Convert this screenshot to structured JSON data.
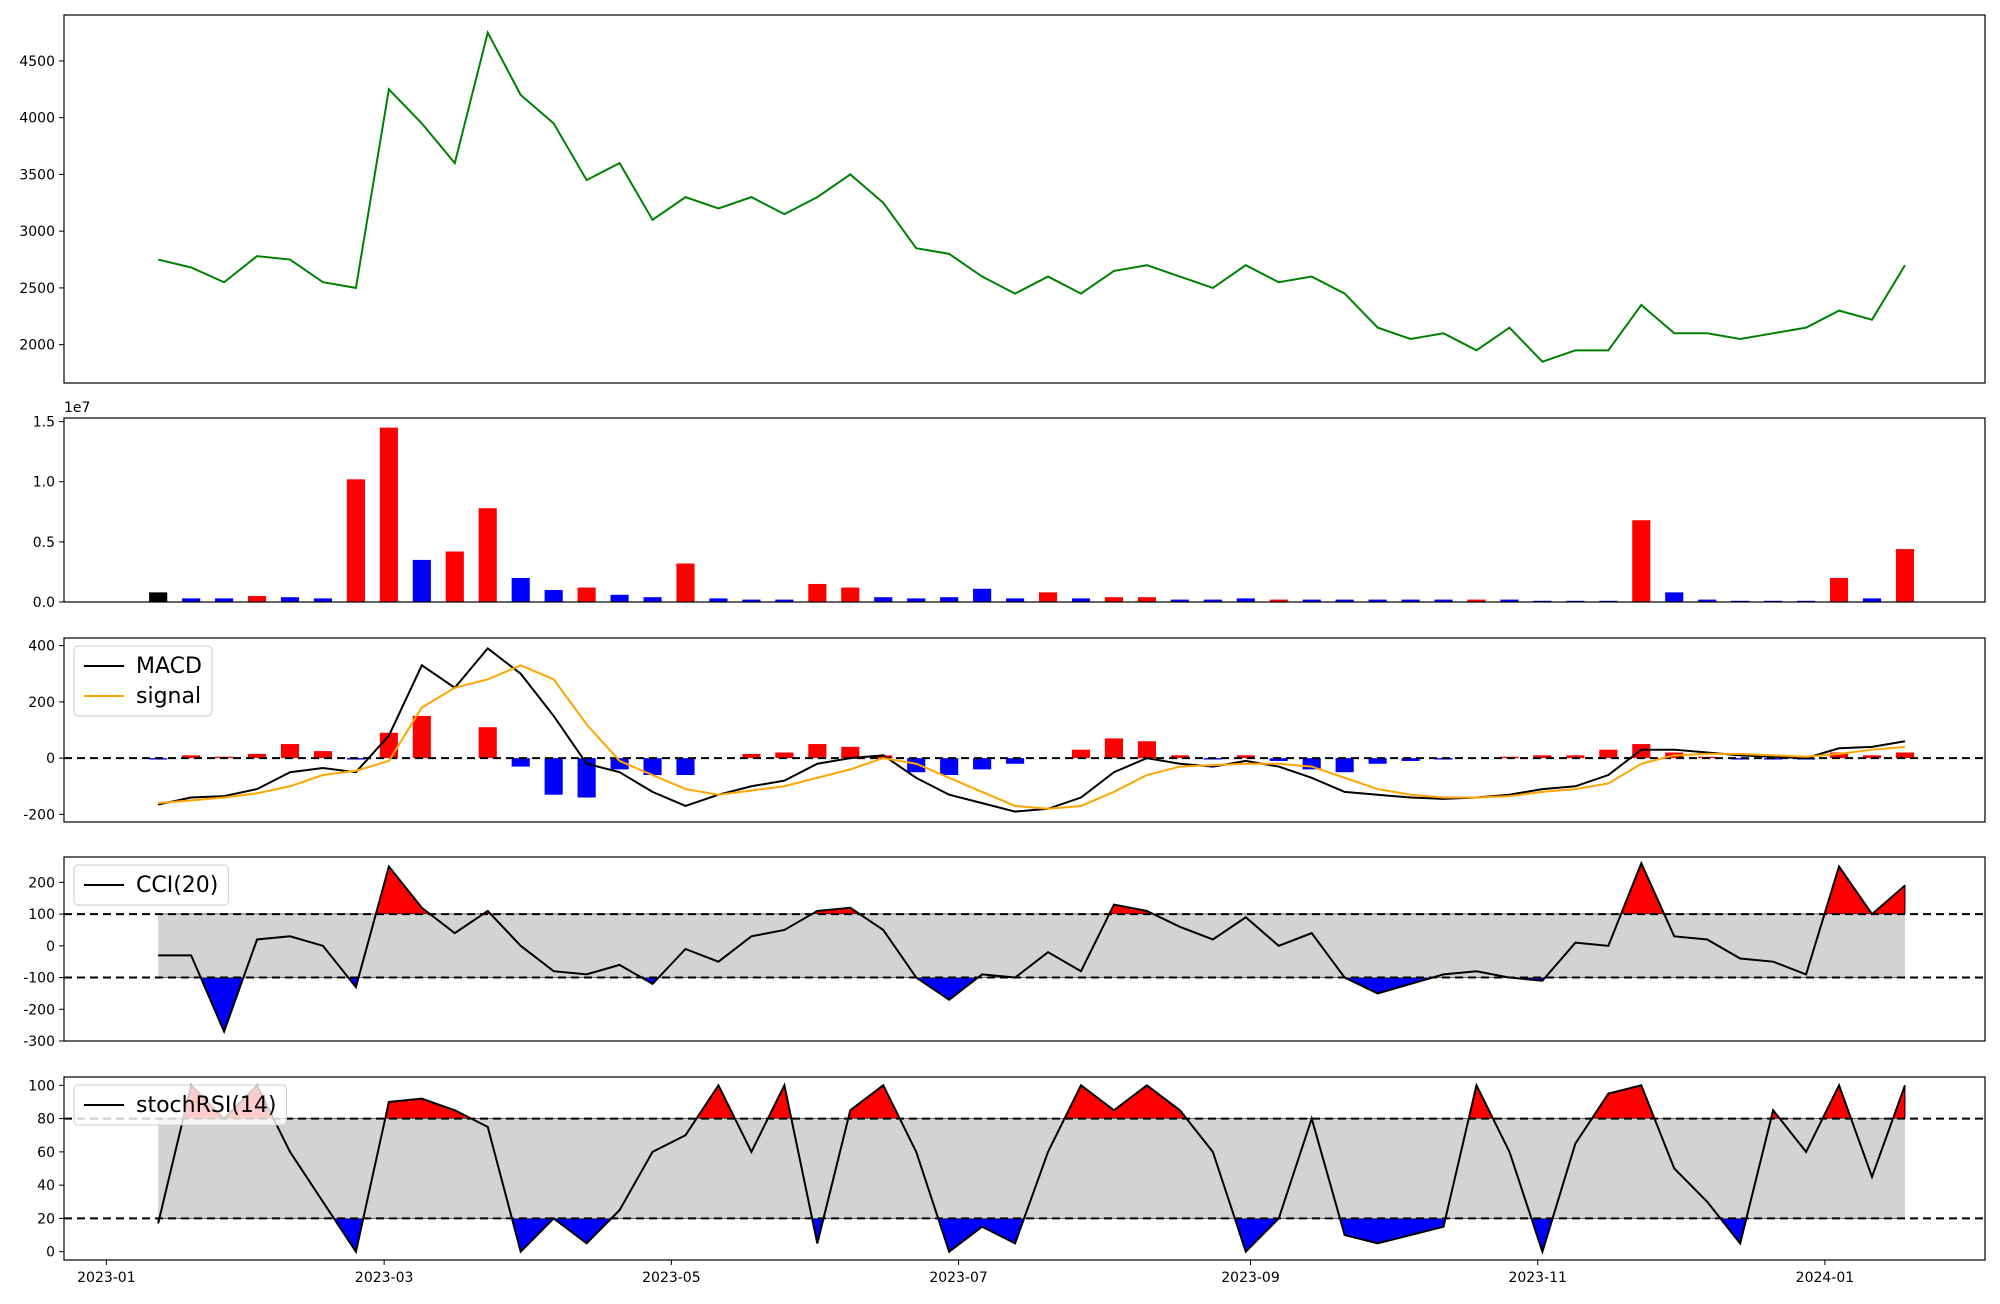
{
  "chart_data": [
    {
      "type": "line",
      "xlim": [
        "2022-12-23",
        "2024-02-04"
      ],
      "ylim": [
        1662,
        4905
      ],
      "yticks": [
        2000,
        2500,
        3000,
        3500,
        4000,
        4500
      ],
      "x": [
        "2023-01-12",
        "2023-01-19",
        "2023-01-26",
        "2023-02-02",
        "2023-02-09",
        "2023-02-16",
        "2023-02-23",
        "2023-03-02",
        "2023-03-09",
        "2023-03-16",
        "2023-03-23",
        "2023-03-30",
        "2023-04-06",
        "2023-04-13",
        "2023-04-20",
        "2023-04-27",
        "2023-05-04",
        "2023-05-11",
        "2023-05-18",
        "2023-05-25",
        "2023-06-01",
        "2023-06-08",
        "2023-06-15",
        "2023-06-22",
        "2023-06-29",
        "2023-07-06",
        "2023-07-13",
        "2023-07-20",
        "2023-07-27",
        "2023-08-03",
        "2023-08-10",
        "2023-08-17",
        "2023-08-24",
        "2023-08-31",
        "2023-09-07",
        "2023-09-14",
        "2023-09-21",
        "2023-09-28",
        "2023-10-05",
        "2023-10-12",
        "2023-10-19",
        "2023-10-26",
        "2023-11-02",
        "2023-11-09",
        "2023-11-16",
        "2023-11-23",
        "2023-11-30",
        "2023-12-07",
        "2023-12-14",
        "2023-12-21",
        "2023-12-28",
        "2024-01-04",
        "2024-01-11",
        "2024-01-18"
      ],
      "series": [
        {
          "color": "#008000",
          "values": [
            2750,
            2680,
            2550,
            2780,
            2750,
            2550,
            2500,
            4250,
            3950,
            3600,
            4750,
            4200,
            3950,
            3450,
            3600,
            3100,
            3300,
            3200,
            3300,
            3150,
            3300,
            3500,
            3250,
            2850,
            2800,
            2600,
            2450,
            2600,
            2450,
            2650,
            2700,
            2600,
            2500,
            2700,
            2550,
            2600,
            2450,
            2150,
            2050,
            2100,
            1950,
            2150,
            1850,
            1950,
            1950,
            2350,
            2100,
            2100,
            2050,
            2100,
            2150,
            2300,
            2220,
            2700
          ]
        }
      ]
    },
    {
      "type": "bar",
      "xlim": [
        "2022-12-23",
        "2024-02-04"
      ],
      "ylim": [
        0,
        1.53
      ],
      "offset_label": "1e7",
      "yticks": [
        {
          "value": 0,
          "label": "0.0"
        },
        {
          "value": 0.5,
          "label": "0.5"
        },
        {
          "value": 1,
          "label": "1.0"
        },
        {
          "value": 1.5,
          "label": "1.5"
        }
      ],
      "x": [
        "2023-01-12",
        "2023-01-19",
        "2023-01-26",
        "2023-02-02",
        "2023-02-09",
        "2023-02-16",
        "2023-02-23",
        "2023-03-02",
        "2023-03-09",
        "2023-03-16",
        "2023-03-23",
        "2023-03-30",
        "2023-04-06",
        "2023-04-13",
        "2023-04-20",
        "2023-04-27",
        "2023-05-04",
        "2023-05-11",
        "2023-05-18",
        "2023-05-25",
        "2023-06-01",
        "2023-06-08",
        "2023-06-15",
        "2023-06-22",
        "2023-06-29",
        "2023-07-06",
        "2023-07-13",
        "2023-07-20",
        "2023-07-27",
        "2023-08-03",
        "2023-08-10",
        "2023-08-17",
        "2023-08-24",
        "2023-08-31",
        "2023-09-07",
        "2023-09-14",
        "2023-09-21",
        "2023-09-28",
        "2023-10-05",
        "2023-10-12",
        "2023-10-19",
        "2023-10-26",
        "2023-11-02",
        "2023-11-09",
        "2023-11-16",
        "2023-11-23",
        "2023-11-30",
        "2023-12-07",
        "2023-12-14",
        "2023-12-21",
        "2023-12-28",
        "2024-01-04",
        "2024-01-11",
        "2024-01-18"
      ],
      "values": [
        0.08,
        0.03,
        0.03,
        0.05,
        0.04,
        0.03,
        1.02,
        1.45,
        0.35,
        0.42,
        0.78,
        0.2,
        0.1,
        0.12,
        0.06,
        0.04,
        0.32,
        0.03,
        0.02,
        0.02,
        0.15,
        0.12,
        0.04,
        0.03,
        0.04,
        0.11,
        0.03,
        0.08,
        0.03,
        0.04,
        0.04,
        0.02,
        0.02,
        0.03,
        0.02,
        0.02,
        0.02,
        0.02,
        0.02,
        0.02,
        0.02,
        0.02,
        0.01,
        0.01,
        0.01,
        0.68,
        0.08,
        0.02,
        0.01,
        0.01,
        0.01,
        0.2,
        0.03,
        0.44
      ],
      "colors": [
        "#000000",
        "#0000ff",
        "#0000ff",
        "#ff0000",
        "#0000ff",
        "#0000ff",
        "#ff0000",
        "#ff0000",
        "#0000ff",
        "#ff0000",
        "#ff0000",
        "#0000ff",
        "#0000ff",
        "#ff0000",
        "#0000ff",
        "#0000ff",
        "#ff0000",
        "#0000ff",
        "#0000ff",
        "#0000ff",
        "#ff0000",
        "#ff0000",
        "#0000ff",
        "#0000ff",
        "#0000ff",
        "#0000ff",
        "#0000ff",
        "#ff0000",
        "#0000ff",
        "#ff0000",
        "#ff0000",
        "#0000ff",
        "#0000ff",
        "#0000ff",
        "#ff0000",
        "#0000ff",
        "#0000ff",
        "#0000ff",
        "#0000ff",
        "#0000ff",
        "#ff0000",
        "#0000ff",
        "#0000ff",
        "#0000ff",
        "#0000ff",
        "#ff0000",
        "#0000ff",
        "#0000ff",
        "#0000ff",
        "#0000ff",
        "#0000ff",
        "#ff0000",
        "#0000ff",
        "#ff0000"
      ]
    },
    {
      "type": "macd",
      "xlim": [
        "2022-12-23",
        "2024-02-04"
      ],
      "ylim": [
        -227,
        427
      ],
      "yticks": [
        -200,
        0,
        200,
        400
      ],
      "hline": 0,
      "x": [
        "2023-01-12",
        "2023-01-19",
        "2023-01-26",
        "2023-02-02",
        "2023-02-09",
        "2023-02-16",
        "2023-02-23",
        "2023-03-02",
        "2023-03-09",
        "2023-03-16",
        "2023-03-23",
        "2023-03-30",
        "2023-04-06",
        "2023-04-13",
        "2023-04-20",
        "2023-04-27",
        "2023-05-04",
        "2023-05-11",
        "2023-05-18",
        "2023-05-25",
        "2023-06-01",
        "2023-06-08",
        "2023-06-15",
        "2023-06-22",
        "2023-06-29",
        "2023-07-06",
        "2023-07-13",
        "2023-07-20",
        "2023-07-27",
        "2023-08-03",
        "2023-08-10",
        "2023-08-17",
        "2023-08-24",
        "2023-08-31",
        "2023-09-07",
        "2023-09-14",
        "2023-09-21",
        "2023-09-28",
        "2023-10-05",
        "2023-10-12",
        "2023-10-19",
        "2023-10-26",
        "2023-11-02",
        "2023-11-09",
        "2023-11-16",
        "2023-11-23",
        "2023-11-30",
        "2023-12-07",
        "2023-12-14",
        "2023-12-21",
        "2023-12-28",
        "2024-01-04",
        "2024-01-11",
        "2024-01-18"
      ],
      "series": [
        {
          "name": "MACD",
          "color": "#000000",
          "values": [
            -165,
            -140,
            -135,
            -110,
            -50,
            -35,
            -50,
            80,
            330,
            250,
            390,
            300,
            150,
            -20,
            -50,
            -120,
            -170,
            -130,
            -100,
            -80,
            -20,
            0,
            10,
            -70,
            -130,
            -160,
            -190,
            -180,
            -140,
            -50,
            0,
            -20,
            -30,
            -10,
            -30,
            -70,
            -120,
            -130,
            -140,
            -145,
            -140,
            -130,
            -110,
            -100,
            -60,
            30,
            30,
            20,
            10,
            5,
            0,
            35,
            40,
            60
          ]
        },
        {
          "name": "signal",
          "color": "#ffa500",
          "values": [
            -160,
            -150,
            -140,
            -125,
            -100,
            -60,
            -45,
            -10,
            180,
            250,
            280,
            330,
            280,
            120,
            -10,
            -60,
            -110,
            -130,
            -115,
            -100,
            -70,
            -40,
            0,
            -20,
            -70,
            -120,
            -170,
            -180,
            -170,
            -120,
            -60,
            -30,
            -25,
            -20,
            -20,
            -30,
            -70,
            -110,
            -130,
            -140,
            -140,
            -135,
            -120,
            -110,
            -90,
            -20,
            10,
            15,
            15,
            10,
            5,
            15,
            30,
            40
          ]
        }
      ],
      "histogram": {
        "positive_color": "#ff0000",
        "negative_color": "#0000ff",
        "values": [
          -5,
          10,
          5,
          15,
          50,
          25,
          -5,
          90,
          150,
          0,
          110,
          -30,
          -130,
          -140,
          -40,
          -60,
          -60,
          0,
          15,
          20,
          50,
          40,
          10,
          -50,
          -60,
          -40,
          -20,
          0,
          30,
          70,
          60,
          10,
          -5,
          10,
          -10,
          -40,
          -50,
          -20,
          -10,
          -5,
          0,
          5,
          10,
          10,
          30,
          50,
          20,
          5,
          -5,
          -5,
          -5,
          20,
          10,
          20
        ]
      }
    },
    {
      "type": "oscillator",
      "xlim": [
        "2022-12-23",
        "2024-02-04"
      ],
      "ylim": [
        -300,
        280
      ],
      "yticks": [
        -300,
        -200,
        -100,
        0,
        100,
        200
      ],
      "bands": {
        "upper": 100,
        "lower": -100,
        "upper_color": "#ff0000",
        "lower_color": "#0000ff",
        "band_color": "#d3d3d3"
      },
      "x": [
        "2023-01-12",
        "2023-01-19",
        "2023-01-26",
        "2023-02-02",
        "2023-02-09",
        "2023-02-16",
        "2023-02-23",
        "2023-03-02",
        "2023-03-09",
        "2023-03-16",
        "2023-03-23",
        "2023-03-30",
        "2023-04-06",
        "2023-04-13",
        "2023-04-20",
        "2023-04-27",
        "2023-05-04",
        "2023-05-11",
        "2023-05-18",
        "2023-05-25",
        "2023-06-01",
        "2023-06-08",
        "2023-06-15",
        "2023-06-22",
        "2023-06-29",
        "2023-07-06",
        "2023-07-13",
        "2023-07-20",
        "2023-07-27",
        "2023-08-03",
        "2023-08-10",
        "2023-08-17",
        "2023-08-24",
        "2023-08-31",
        "2023-09-07",
        "2023-09-14",
        "2023-09-21",
        "2023-09-28",
        "2023-10-05",
        "2023-10-12",
        "2023-10-19",
        "2023-10-26",
        "2023-11-02",
        "2023-11-09",
        "2023-11-16",
        "2023-11-23",
        "2023-11-30",
        "2023-12-07",
        "2023-12-14",
        "2023-12-21",
        "2023-12-28",
        "2024-01-04",
        "2024-01-11",
        "2024-01-18"
      ],
      "series": [
        {
          "name": "CCI(20)",
          "color": "#000000",
          "values": [
            -30,
            -30,
            -270,
            20,
            30,
            0,
            -130,
            250,
            120,
            40,
            110,
            0,
            -80,
            -90,
            -60,
            -120,
            -10,
            -50,
            30,
            50,
            110,
            120,
            50,
            -100,
            -170,
            -90,
            -100,
            -20,
            -80,
            130,
            110,
            60,
            20,
            90,
            0,
            40,
            -100,
            -150,
            -120,
            -90,
            -80,
            -100,
            -110,
            10,
            0,
            260,
            30,
            20,
            -40,
            -50,
            -90,
            250,
            100,
            190
          ]
        }
      ]
    },
    {
      "type": "oscillator",
      "xlim": [
        "2022-12-23",
        "2024-02-04"
      ],
      "ylim": [
        -5,
        105
      ],
      "yticks": [
        0,
        20,
        40,
        60,
        80,
        100
      ],
      "bands": {
        "upper": 80,
        "lower": 20,
        "upper_color": "#ff0000",
        "lower_color": "#0000ff",
        "band_color": "#d3d3d3"
      },
      "xticks": [
        {
          "value": "2023-01-01",
          "label": "2023-01"
        },
        {
          "value": "2023-03-01",
          "label": "2023-03"
        },
        {
          "value": "2023-05-01",
          "label": "2023-05"
        },
        {
          "value": "2023-07-01",
          "label": "2023-07"
        },
        {
          "value": "2023-09-01",
          "label": "2023-09"
        },
        {
          "value": "2023-11-01",
          "label": "2023-11"
        },
        {
          "value": "2024-01-01",
          "label": "2024-01"
        }
      ],
      "x": [
        "2023-01-12",
        "2023-01-19",
        "2023-01-26",
        "2023-02-02",
        "2023-02-09",
        "2023-02-16",
        "2023-02-23",
        "2023-03-02",
        "2023-03-09",
        "2023-03-16",
        "2023-03-23",
        "2023-03-30",
        "2023-04-06",
        "2023-04-13",
        "2023-04-20",
        "2023-04-27",
        "2023-05-04",
        "2023-05-11",
        "2023-05-18",
        "2023-05-25",
        "2023-06-01",
        "2023-06-08",
        "2023-06-15",
        "2023-06-22",
        "2023-06-29",
        "2023-07-06",
        "2023-07-13",
        "2023-07-20",
        "2023-07-27",
        "2023-08-03",
        "2023-08-10",
        "2023-08-17",
        "2023-08-24",
        "2023-08-31",
        "2023-09-07",
        "2023-09-14",
        "2023-09-21",
        "2023-09-28",
        "2023-10-05",
        "2023-10-12",
        "2023-10-19",
        "2023-10-26",
        "2023-11-02",
        "2023-11-09",
        "2023-11-16",
        "2023-11-23",
        "2023-11-30",
        "2023-12-07",
        "2023-12-14",
        "2023-12-21",
        "2023-12-28",
        "2024-01-04",
        "2024-01-11",
        "2024-01-18"
      ],
      "series": [
        {
          "name": "stochRSI(14)",
          "color": "#000000",
          "values": [
            17,
            100,
            80,
            100,
            60,
            30,
            0,
            90,
            92,
            85,
            75,
            0,
            20,
            5,
            25,
            60,
            70,
            100,
            60,
            100,
            5,
            85,
            100,
            60,
            0,
            15,
            5,
            60,
            100,
            85,
            100,
            85,
            60,
            0,
            20,
            80,
            10,
            5,
            10,
            15,
            100,
            60,
            0,
            65,
            95,
            100,
            50,
            30,
            5,
            85,
            60,
            100,
            45,
            100
          ]
        }
      ]
    }
  ]
}
